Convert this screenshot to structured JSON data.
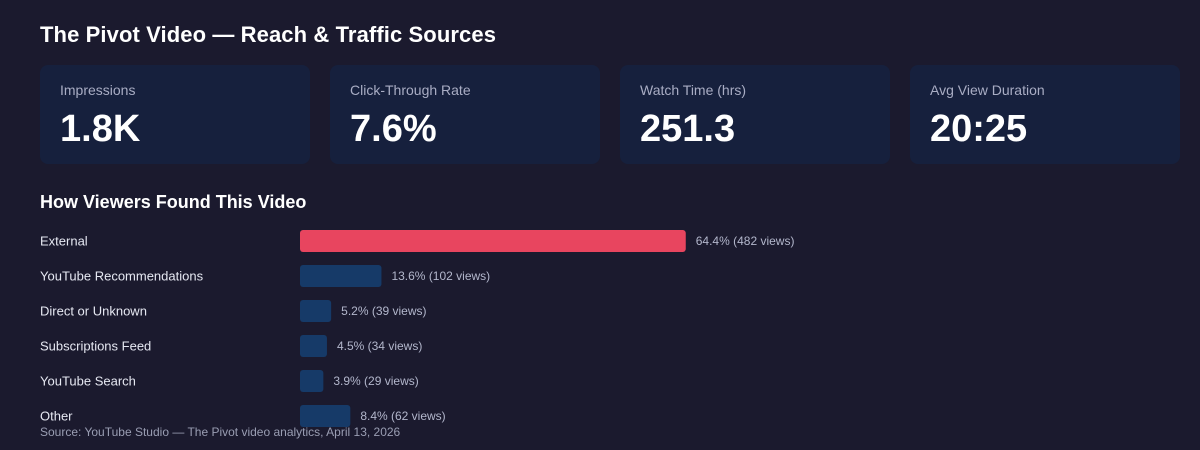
{
  "title": "The Pivot Video — Reach & Traffic Sources",
  "kpis": [
    {
      "label": "Impressions",
      "value": "1.8K"
    },
    {
      "label": "Click-Through Rate",
      "value": "7.6%"
    },
    {
      "label": "Watch Time (hrs)",
      "value": "251.3"
    },
    {
      "label": "Avg View Duration",
      "value": "20:25"
    }
  ],
  "section_title": "How Viewers Found This Video",
  "source": "Source: YouTube Studio — The Pivot video analytics, April 13, 2026",
  "colors": {
    "background": "#1b1a2e",
    "card": "#16203d",
    "highlight_bar": "#e8455f",
    "bar": "#163a68"
  },
  "chart_data": {
    "type": "bar",
    "orientation": "horizontal",
    "title": "How Viewers Found This Video",
    "categories": [
      "External",
      "YouTube Recommendations",
      "Direct or Unknown",
      "Subscriptions Feed",
      "YouTube Search",
      "Other"
    ],
    "values": [
      64.4,
      13.6,
      5.2,
      4.5,
      3.9,
      8.4
    ],
    "views": [
      482,
      102,
      39,
      34,
      29,
      62
    ],
    "value_labels": [
      "64.4% (482 views)",
      "13.6% (102 views)",
      "5.2% (39 views)",
      "4.5% (34 views)",
      "3.9% (29 views)",
      "8.4% (62 views)"
    ],
    "unit": "%",
    "highlight_index": 0,
    "grid": false,
    "legend": "none"
  }
}
